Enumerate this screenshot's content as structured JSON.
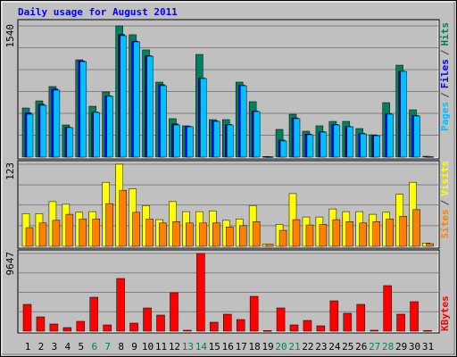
{
  "title": "Daily usage for August 2011",
  "categories": [
    "1",
    "2",
    "3",
    "4",
    "5",
    "6",
    "7",
    "8",
    "9",
    "10",
    "11",
    "12",
    "13",
    "14",
    "15",
    "16",
    "17",
    "18",
    "19",
    "20",
    "21",
    "22",
    "23",
    "24",
    "25",
    "26",
    "27",
    "28",
    "29",
    "30",
    "31"
  ],
  "category_colors": [
    "#000000",
    "#000000",
    "#000000",
    "#000000",
    "#000000",
    "#00805c",
    "#00805c",
    "#000000",
    "#000000",
    "#000000",
    "#000000",
    "#000000",
    "#00805c",
    "#00805c",
    "#000000",
    "#000000",
    "#000000",
    "#000000",
    "#000000",
    "#00805c",
    "#00805c",
    "#000000",
    "#000000",
    "#000000",
    "#000000",
    "#000000",
    "#00805c",
    "#00805c",
    "#000000",
    "#000000",
    "#000000"
  ],
  "legend_separator": "/",
  "chart_data": [
    {
      "type": "bar",
      "ylim": [
        0,
        1540
      ],
      "yticks": [
        1540
      ],
      "gridlines": [
        257,
        513,
        770,
        1027,
        1283
      ],
      "series": [
        {
          "name": "Hits",
          "color": "#00805c",
          "values": [
            576,
            660,
            828,
            377,
            1142,
            597,
            765,
            1540,
            1436,
            1258,
            880,
            451,
            367,
            1205,
            440,
            440,
            880,
            650,
            8,
            325,
            503,
            304,
            367,
            419,
            419,
            335,
            262,
            639,
            1079,
            555,
            10
          ]
        },
        {
          "name": "Files",
          "color": "#0000ff",
          "values": [
            520,
            620,
            800,
            350,
            1130,
            530,
            720,
            1440,
            1360,
            1190,
            850,
            390,
            360,
            930,
            425,
            385,
            845,
            540,
            6,
            200,
            460,
            270,
            300,
            385,
            360,
            280,
            255,
            510,
            1010,
            490,
            8
          ]
        },
        {
          "name": "Pages",
          "color": "#00c0ff",
          "values": [
            503,
            608,
            786,
            346,
            1121,
            524,
            713,
            1425,
            1352,
            1184,
            838,
            377,
            356,
            922,
            419,
            377,
            838,
            534,
            5,
            189,
            451,
            262,
            293,
            377,
            356,
            272,
            251,
            503,
            1006,
            482,
            6
          ]
        }
      ]
    },
    {
      "type": "bar",
      "ylim": [
        0,
        123
      ],
      "yticks": [
        123
      ],
      "gridlines": [
        31,
        62,
        92
      ],
      "series": [
        {
          "name": "Visits",
          "color": "#ffff00",
          "values": [
            49,
            49,
            67,
            63,
            51,
            52,
            96,
            123,
            86,
            61,
            40,
            67,
            52,
            52,
            53,
            39,
            41,
            61,
            3,
            33,
            79,
            44,
            44,
            56,
            52,
            52,
            48,
            51,
            78,
            96,
            5
          ]
        },
        {
          "name": "Sites",
          "color": "#ff8000",
          "values": [
            28,
            35,
            39,
            48,
            41,
            41,
            64,
            84,
            51,
            41,
            35,
            37,
            35,
            35,
            35,
            29,
            31,
            37,
            3,
            24,
            40,
            32,
            33,
            40,
            37,
            35,
            37,
            41,
            45,
            55,
            4
          ]
        }
      ]
    },
    {
      "type": "bar",
      "ylim": [
        0,
        9647
      ],
      "yticks": [
        9647
      ],
      "gridlines": [
        2412,
        4824,
        7235
      ],
      "series": [
        {
          "name": "KBytes",
          "color": "#ff0000",
          "values": [
            3327,
            1774,
            887,
            444,
            1220,
            4214,
            776,
            6543,
            998,
            2883,
            1996,
            4769,
            111,
            9647,
            1109,
            2107,
            1442,
            4325,
            80,
            2883,
            776,
            1331,
            665,
            3771,
            2218,
            3327,
            111,
            5656,
            2107,
            3660,
            90
          ]
        }
      ]
    }
  ]
}
